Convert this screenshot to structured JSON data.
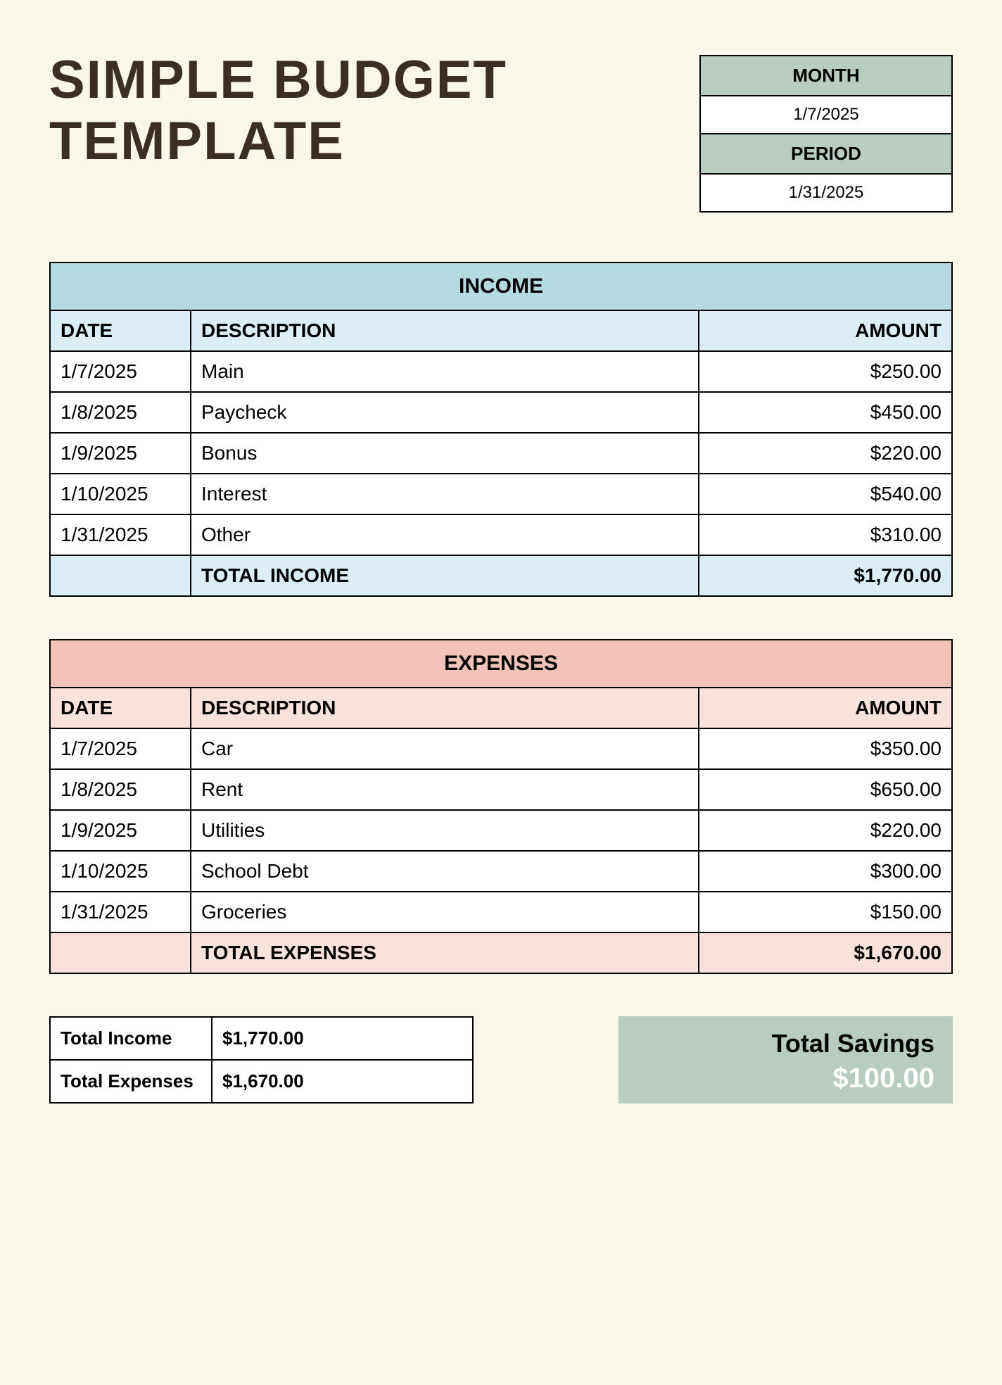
{
  "title_line1": "SIMPLE BUDGET",
  "title_line2": "TEMPLATE",
  "period_box": {
    "month_label": "MONTH",
    "month_value": "1/7/2025",
    "period_label": "PERIOD",
    "period_value": "1/31/2025",
    "label_bg": "#b8cdc0",
    "value_bg": "#ffffff"
  },
  "income": {
    "title": "INCOME",
    "title_bg": "#b4dbe0",
    "header_bg": "#dbeef5",
    "total_bg": "#dbeef5",
    "columns": {
      "date": "DATE",
      "description": "DESCRIPTION",
      "amount": "AMOUNT"
    },
    "rows": [
      {
        "date": "1/7/2025",
        "description": "Main",
        "amount": "$250.00"
      },
      {
        "date": "1/8/2025",
        "description": "Paycheck",
        "amount": "$450.00"
      },
      {
        "date": "1/9/2025",
        "description": "Bonus",
        "amount": "$220.00"
      },
      {
        "date": "1/10/2025",
        "description": "Interest",
        "amount": "$540.00"
      },
      {
        "date": "1/31/2025",
        "description": "Other",
        "amount": "$310.00"
      }
    ],
    "total_label": "TOTAL INCOME",
    "total_amount": "$1,770.00"
  },
  "expenses": {
    "title": "EXPENSES",
    "title_bg": "#f2c2b6",
    "header_bg": "#f8e2db",
    "total_bg": "#f8e2db",
    "columns": {
      "date": "DATE",
      "description": "DESCRIPTION",
      "amount": "AMOUNT"
    },
    "rows": [
      {
        "date": "1/7/2025",
        "description": "Car",
        "amount": "$350.00"
      },
      {
        "date": "1/8/2025",
        "description": "Rent",
        "amount": "$650.00"
      },
      {
        "date": "1/9/2025",
        "description": "Utilities",
        "amount": "$220.00"
      },
      {
        "date": "1/10/2025",
        "description": "School Debt",
        "amount": "$300.00"
      },
      {
        "date": "1/31/2025",
        "description": "Groceries",
        "amount": "$150.00"
      }
    ],
    "total_label": "TOTAL EXPENSES",
    "total_amount": "$1,670.00"
  },
  "summary": {
    "income_label": "Total Income",
    "income_value": "$1,770.00",
    "expenses_label": "Total Expenses",
    "expenses_value": "$1,670.00",
    "savings_label": "Total Savings",
    "savings_value": "$100.00",
    "savings_bg": "#b8cdc0"
  },
  "page_bg": "#f9f7ea",
  "border_color": "#000000"
}
